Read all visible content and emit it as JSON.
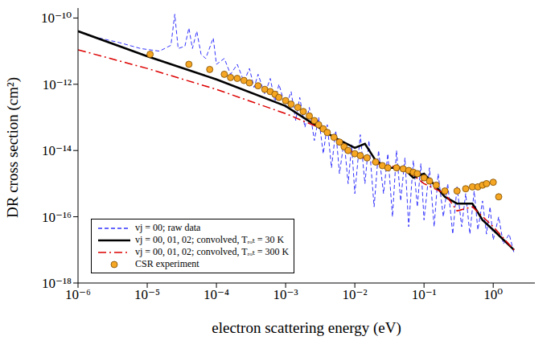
{
  "chart_data": {
    "type": "line",
    "x_label": "electron scattering energy (eV)",
    "y_label": "DR cross section (cm²)",
    "log": true,
    "grid": false,
    "legend": "lower left",
    "xlim": [
      1e-06,
      4
    ],
    "ylim": [
      1e-18,
      2e-10
    ],
    "xticks": [
      {
        "value": 1e-06,
        "label": "10⁻⁶"
      },
      {
        "value": 1e-05,
        "label": "10⁻⁵"
      },
      {
        "value": 0.0001,
        "label": "10⁻⁴"
      },
      {
        "value": 0.001,
        "label": "10⁻³"
      },
      {
        "value": 0.01,
        "label": "10⁻²"
      },
      {
        "value": 0.1,
        "label": "10⁻¹"
      },
      {
        "value": 1,
        "label": "10⁰"
      }
    ],
    "yticks": [
      {
        "value": 1e-18,
        "label": "10⁻¹⁸"
      },
      {
        "value": 1e-16,
        "label": "10⁻¹⁶"
      },
      {
        "value": 1e-14,
        "label": "10⁻¹⁴"
      },
      {
        "value": 1e-12,
        "label": "10⁻¹²"
      },
      {
        "value": 1e-10,
        "label": "10⁻¹⁰"
      }
    ],
    "series": [
      {
        "name": "vj = 00; raw data",
        "type": "line",
        "color": "#3333ff",
        "line_style": "dashed",
        "x": [
          2e-06,
          4e-06,
          8e-06,
          1.5e-05,
          2.2e-05,
          2.5e-05,
          2.8e-05,
          3.5e-05,
          4e-05,
          4.5e-05,
          5.2e-05,
          6e-05,
          7e-05,
          9e-05,
          0.0001,
          0.00013,
          0.00016,
          0.0002,
          0.00025,
          0.0003,
          0.00035,
          0.0004,
          0.0005,
          0.0006,
          0.0007,
          0.0008,
          0.001,
          0.0012,
          0.0014,
          0.0016,
          0.0019,
          0.0022,
          0.0026,
          0.003,
          0.0035,
          0.004,
          0.0046,
          0.0053,
          0.006,
          0.007,
          0.008,
          0.009,
          0.01,
          0.012,
          0.014,
          0.016,
          0.019,
          0.022,
          0.026,
          0.03,
          0.035,
          0.04,
          0.046,
          0.053,
          0.06,
          0.07,
          0.08,
          0.09,
          0.1,
          0.12,
          0.14,
          0.16,
          0.19,
          0.22,
          0.26,
          0.3,
          0.35,
          0.4,
          0.46,
          0.53,
          0.6,
          0.7,
          0.8,
          0.9,
          1.0,
          1.2,
          1.4,
          1.7,
          2
        ],
        "values": [
          2.5e-11,
          1.8e-11,
          1.2e-11,
          1e-11,
          1.5e-11,
          1.3e-10,
          1.2e-11,
          1.4e-11,
          5e-11,
          1.2e-11,
          4e-11,
          8e-12,
          6e-12,
          2.5e-11,
          4e-12,
          6e-12,
          2e-12,
          4e-12,
          1.2e-12,
          3e-12,
          8e-13,
          2e-12,
          5e-13,
          1.5e-12,
          3e-13,
          1e-12,
          2e-13,
          6e-13,
          8e-14,
          4e-13,
          5e-14,
          2e-13,
          2e-14,
          1e-13,
          8e-15,
          6e-14,
          3e-15,
          4e-14,
          2e-15,
          2e-14,
          1e-15,
          1.5e-14,
          5e-16,
          3e-14,
          1e-15,
          2e-14,
          2e-16,
          1e-14,
          5e-16,
          8e-15,
          1e-16,
          1e-14,
          3e-16,
          6e-15,
          5e-17,
          5e-15,
          2e-16,
          4e-15,
          8e-17,
          3e-15,
          5e-17,
          2e-15,
          1e-16,
          1e-15,
          3e-17,
          8e-16,
          5e-17,
          5e-16,
          3e-17,
          6e-16,
          4e-17,
          3e-16,
          3e-17,
          2e-16,
          2e-17,
          1e-16,
          1.5e-17,
          3e-17,
          8e-18
        ]
      },
      {
        "name": "vj = 00, 01, 02; convolved, Tᵣₒₜ = 30 K",
        "type": "line",
        "color": "#000000",
        "line_style": "solid",
        "x": [
          1e-06,
          1e-05,
          0.0001,
          0.001,
          0.003,
          0.005,
          0.01,
          0.014,
          0.02,
          0.03,
          0.05,
          0.07,
          0.1,
          0.15,
          0.2,
          0.3,
          0.5,
          0.7,
          1,
          2
        ],
        "values": [
          4e-11,
          7e-12,
          1.4e-12,
          2.2e-13,
          5e-14,
          2.5e-14,
          1.2e-14,
          1.6e-14,
          5e-15,
          3e-15,
          3e-15,
          1.5e-15,
          2e-15,
          8e-16,
          4e-16,
          2.5e-16,
          2.5e-16,
          8e-17,
          4e-17,
          1e-17
        ]
      },
      {
        "name": "vj = 00, 01, 02; convolved, Tᵣₒₜ = 300 K",
        "type": "line",
        "color": "#dd0000",
        "line_style": "dashdot",
        "x": [
          1e-06,
          1e-05,
          0.0001,
          0.001,
          0.003,
          0.005,
          0.01,
          0.02,
          0.05,
          0.1,
          0.2,
          0.3,
          0.5,
          1,
          2
        ],
        "values": [
          1.1e-11,
          3e-12,
          7e-13,
          1.3e-13,
          5e-14,
          2.5e-14,
          8e-15,
          4e-15,
          3e-15,
          1e-15,
          5e-16,
          1.5e-16,
          2e-16,
          5e-17,
          1e-17
        ]
      },
      {
        "name": "CSR experiment",
        "type": "scatter",
        "color": "#f5a623",
        "marker": "circle",
        "x": [
          1.1e-05,
          4e-05,
          8e-05,
          0.00013,
          0.00016,
          0.0002,
          0.00025,
          0.0003,
          0.0004,
          0.0005,
          0.0006,
          0.0007,
          0.0008,
          0.001,
          0.0012,
          0.0015,
          0.0018,
          0.0022,
          0.0026,
          0.003,
          0.0035,
          0.004,
          0.005,
          0.006,
          0.007,
          0.008,
          0.01,
          0.012,
          0.015,
          0.02,
          0.025,
          0.03,
          0.04,
          0.05,
          0.06,
          0.07,
          0.08,
          0.1,
          0.12,
          0.15,
          0.2,
          0.3,
          0.4,
          0.5,
          0.6,
          0.7,
          0.8,
          1.0,
          1.2
        ],
        "values": [
          8e-12,
          4e-12,
          2.8e-12,
          2e-12,
          1.6e-12,
          1.5e-12,
          1.3e-12,
          1.1e-12,
          9e-13,
          7e-13,
          6e-13,
          5e-13,
          4e-13,
          3.2e-13,
          2.5e-13,
          2e-13,
          1.5e-13,
          1.1e-13,
          8e-14,
          6e-14,
          4.5e-14,
          3.5e-14,
          2.5e-14,
          1.8e-14,
          1.3e-14,
          1e-14,
          8e-15,
          7e-15,
          6e-15,
          4.5e-15,
          3.5e-15,
          3e-15,
          3e-15,
          2.8e-15,
          2.5e-15,
          2.2e-15,
          2e-15,
          1.5e-15,
          1.2e-15,
          9e-16,
          6e-16,
          6e-16,
          7e-16,
          8e-16,
          8e-16,
          9e-16,
          1e-15,
          1.1e-15,
          4e-16
        ]
      }
    ]
  }
}
